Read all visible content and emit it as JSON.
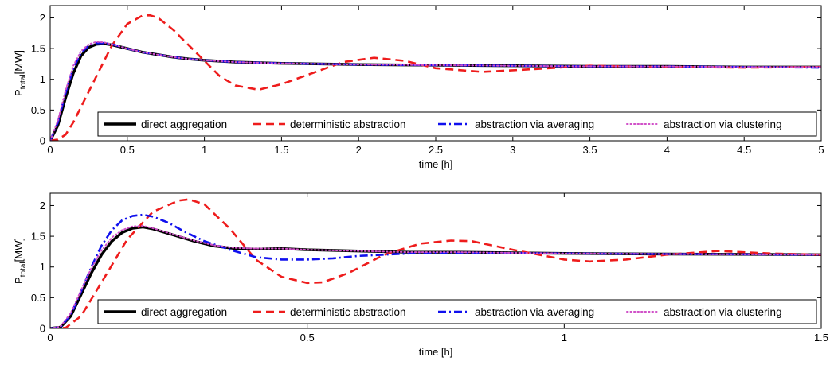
{
  "chart_data": [
    {
      "type": "line",
      "xlabel": "time [h]",
      "ylabel": {
        "main": "P",
        "sub": "total",
        "rest": "[MW]"
      },
      "xlim": [
        0,
        5
      ],
      "ylim": [
        0,
        2.2
      ],
      "xticks": [
        0,
        0.5,
        1,
        1.5,
        2,
        2.5,
        3,
        3.5,
        4,
        4.5,
        5
      ],
      "xtick_labels": [
        "0",
        "0.5",
        "1",
        "1.5",
        "2",
        "2.5",
        "3",
        "3.5",
        "4",
        "4.5",
        "5"
      ],
      "yticks": [
        0,
        0.5,
        1,
        1.5,
        2
      ],
      "ytick_labels": [
        "0",
        "0.5",
        "1",
        "1.5",
        "2"
      ],
      "grid": false,
      "legend_position": "bottom-right",
      "series": [
        {
          "name": "direct aggregation",
          "color": "#000000",
          "style": "solid",
          "x": [
            0,
            0.05,
            0.1,
            0.15,
            0.2,
            0.25,
            0.3,
            0.35,
            0.4,
            0.5,
            0.6,
            0.7,
            0.8,
            0.9,
            1.0,
            1.2,
            1.5,
            2.0,
            2.5,
            3.0,
            3.5,
            4.0,
            4.5,
            5.0
          ],
          "y": [
            0,
            0.25,
            0.7,
            1.1,
            1.38,
            1.52,
            1.57,
            1.58,
            1.56,
            1.5,
            1.44,
            1.4,
            1.36,
            1.33,
            1.31,
            1.28,
            1.26,
            1.24,
            1.23,
            1.22,
            1.21,
            1.21,
            1.2,
            1.2
          ]
        },
        {
          "name": "deterministic abstraction",
          "color": "#ee1c1c",
          "style": "dashed",
          "x": [
            0,
            0.05,
            0.1,
            0.15,
            0.2,
            0.3,
            0.4,
            0.5,
            0.6,
            0.65,
            0.7,
            0.8,
            0.9,
            1.0,
            1.1,
            1.2,
            1.35,
            1.5,
            1.7,
            1.9,
            2.1,
            2.3,
            2.5,
            2.8,
            3.1,
            3.5,
            4.0,
            4.5,
            5.0
          ],
          "y": [
            0,
            0.02,
            0.1,
            0.3,
            0.55,
            1.05,
            1.55,
            1.9,
            2.04,
            2.04,
            2.0,
            1.8,
            1.55,
            1.3,
            1.05,
            0.9,
            0.83,
            0.92,
            1.1,
            1.28,
            1.35,
            1.3,
            1.18,
            1.12,
            1.16,
            1.22,
            1.2,
            1.19,
            1.2
          ]
        },
        {
          "name": "abstraction via averaging",
          "color": "#1010ee",
          "style": "dashdot",
          "x": [
            0,
            0.05,
            0.1,
            0.15,
            0.2,
            0.25,
            0.3,
            0.35,
            0.4,
            0.5,
            0.6,
            0.7,
            0.8,
            0.9,
            1.0,
            1.2,
            1.5,
            2.0,
            2.5,
            3.0,
            3.5,
            4.0,
            4.5,
            5.0
          ],
          "y": [
            0,
            0.3,
            0.78,
            1.18,
            1.43,
            1.55,
            1.59,
            1.59,
            1.57,
            1.5,
            1.44,
            1.4,
            1.36,
            1.33,
            1.31,
            1.28,
            1.26,
            1.24,
            1.23,
            1.22,
            1.21,
            1.21,
            1.2,
            1.19
          ]
        },
        {
          "name": "abstraction via clustering",
          "color": "#d050c8",
          "style": "dotted",
          "x": [
            0,
            0.05,
            0.1,
            0.15,
            0.2,
            0.25,
            0.3,
            0.35,
            0.4,
            0.5,
            0.6,
            0.7,
            0.8,
            0.9,
            1.0,
            1.2,
            1.5,
            2.0,
            2.5,
            3.0,
            3.5,
            4.0,
            4.5,
            5.0
          ],
          "y": [
            0,
            0.33,
            0.82,
            1.22,
            1.46,
            1.57,
            1.61,
            1.6,
            1.57,
            1.5,
            1.44,
            1.4,
            1.36,
            1.33,
            1.31,
            1.28,
            1.26,
            1.24,
            1.23,
            1.22,
            1.21,
            1.21,
            1.2,
            1.2
          ]
        }
      ]
    },
    {
      "type": "line",
      "xlabel": "time [h]",
      "ylabel": {
        "main": "P",
        "sub": "total",
        "rest": "[MW]"
      },
      "xlim": [
        0,
        1.5
      ],
      "ylim": [
        0,
        2.2
      ],
      "xticks": [
        0,
        0.5,
        1,
        1.5
      ],
      "xtick_labels": [
        "0",
        "0.5",
        "1",
        "1.5"
      ],
      "yticks": [
        0,
        0.5,
        1,
        1.5,
        2
      ],
      "ytick_labels": [
        "0",
        "0.5",
        "1",
        "1.5",
        "2"
      ],
      "grid": false,
      "legend_position": "bottom-right",
      "series": [
        {
          "name": "direct aggregation",
          "color": "#000000",
          "style": "solid",
          "x": [
            0,
            0.02,
            0.04,
            0.06,
            0.08,
            0.1,
            0.12,
            0.14,
            0.16,
            0.18,
            0.2,
            0.24,
            0.28,
            0.32,
            0.36,
            0.4,
            0.45,
            0.5,
            0.6,
            0.7,
            0.8,
            0.9,
            1.0,
            1.2,
            1.5
          ],
          "y": [
            0,
            0.02,
            0.2,
            0.55,
            0.9,
            1.2,
            1.42,
            1.56,
            1.63,
            1.65,
            1.62,
            1.52,
            1.42,
            1.34,
            1.3,
            1.29,
            1.3,
            1.28,
            1.26,
            1.24,
            1.24,
            1.23,
            1.22,
            1.21,
            1.2
          ]
        },
        {
          "name": "deterministic abstraction",
          "color": "#ee1c1c",
          "style": "dashed",
          "x": [
            0,
            0.03,
            0.06,
            0.1,
            0.15,
            0.2,
            0.25,
            0.27,
            0.3,
            0.35,
            0.4,
            0.45,
            0.5,
            0.53,
            0.58,
            0.65,
            0.72,
            0.78,
            0.82,
            0.9,
            1.0,
            1.05,
            1.12,
            1.2,
            1.3,
            1.4,
            1.5
          ],
          "y": [
            0,
            0.01,
            0.2,
            0.75,
            1.45,
            1.9,
            2.08,
            2.1,
            2.02,
            1.62,
            1.12,
            0.84,
            0.74,
            0.75,
            0.9,
            1.2,
            1.38,
            1.43,
            1.42,
            1.28,
            1.12,
            1.09,
            1.12,
            1.2,
            1.26,
            1.22,
            1.2
          ]
        },
        {
          "name": "abstraction via averaging",
          "color": "#1010ee",
          "style": "dashdot",
          "x": [
            0,
            0.02,
            0.04,
            0.06,
            0.08,
            0.1,
            0.12,
            0.14,
            0.16,
            0.18,
            0.2,
            0.23,
            0.26,
            0.3,
            0.35,
            0.4,
            0.45,
            0.5,
            0.55,
            0.6,
            0.7,
            0.8,
            1.0,
            1.2,
            1.5
          ],
          "y": [
            0,
            0.02,
            0.22,
            0.6,
            1.0,
            1.35,
            1.6,
            1.76,
            1.83,
            1.85,
            1.82,
            1.72,
            1.58,
            1.42,
            1.28,
            1.16,
            1.12,
            1.12,
            1.14,
            1.18,
            1.22,
            1.23,
            1.22,
            1.21,
            1.2
          ]
        },
        {
          "name": "abstraction via clustering",
          "color": "#d050c8",
          "style": "dotted",
          "x": [
            0,
            0.02,
            0.04,
            0.06,
            0.08,
            0.1,
            0.12,
            0.14,
            0.16,
            0.18,
            0.2,
            0.24,
            0.28,
            0.32,
            0.36,
            0.4,
            0.45,
            0.5,
            0.6,
            0.7,
            0.8,
            0.9,
            1.0,
            1.2,
            1.5
          ],
          "y": [
            0,
            0.03,
            0.25,
            0.62,
            0.98,
            1.27,
            1.48,
            1.6,
            1.66,
            1.67,
            1.63,
            1.53,
            1.43,
            1.35,
            1.31,
            1.3,
            1.3,
            1.28,
            1.26,
            1.24,
            1.24,
            1.23,
            1.22,
            1.21,
            1.2
          ]
        }
      ]
    }
  ]
}
